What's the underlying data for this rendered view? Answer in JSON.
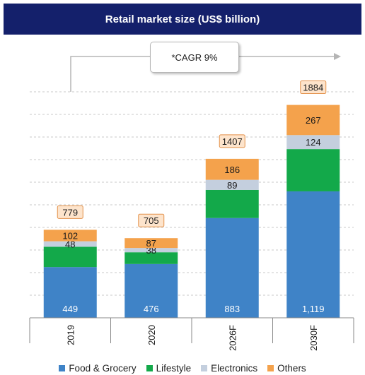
{
  "chart_data": {
    "type": "bar",
    "stacked": true,
    "title": "Retail market size (US$ billion)",
    "annotation": "*CAGR 9%",
    "categories": [
      "2019",
      "2020",
      "2026F",
      "2030F"
    ],
    "series": [
      {
        "name": "Food & Grocery",
        "values": [
          449,
          476,
          883,
          1119
        ],
        "labels": [
          "449",
          "476",
          "883",
          "1,119"
        ],
        "color": "#3f83c7"
      },
      {
        "name": "Lifestyle",
        "values": [
          180,
          104,
          249,
          374
        ],
        "labels": [
          null,
          null,
          null,
          null
        ],
        "color": "#13a94a"
      },
      {
        "name": "Electronics",
        "values": [
          48,
          38,
          89,
          124
        ],
        "labels": [
          "48",
          "38",
          "89",
          "124"
        ],
        "color": "#c4cfde"
      },
      {
        "name": "Others",
        "values": [
          102,
          87,
          186,
          267
        ],
        "labels": [
          "102",
          "87",
          "186",
          "267"
        ],
        "color": "#f4a24c"
      }
    ],
    "totals": [
      779,
      705,
      1407,
      1884
    ],
    "ylim": [
      0,
      2000
    ],
    "grid": true,
    "legend_position": "bottom"
  }
}
